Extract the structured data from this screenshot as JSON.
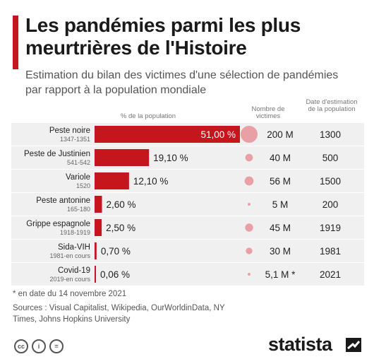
{
  "header": {
    "title": "Les pandémies parmi les plus meurtrières de l'Histoire",
    "subtitle": "Estimation du bilan des victimes d'une sélection de pandémies par rapport à la population mondiale"
  },
  "columns": {
    "pct": "% de la population",
    "victims": "Nombre de victimes",
    "date": "Date d'estimation de la population"
  },
  "chart_data": {
    "type": "bar",
    "orientation": "horizontal",
    "rows": [
      {
        "name": "Peste noire",
        "period": "1347-1351",
        "pct": 51.0,
        "pct_label": "51,00 %",
        "victims": 200,
        "victims_label": "200 M",
        "date": "1300"
      },
      {
        "name": "Peste de Justinien",
        "period": "541-542",
        "pct": 19.1,
        "pct_label": "19,10 %",
        "victims": 40,
        "victims_label": "40 M",
        "date": "500"
      },
      {
        "name": "Variole",
        "period": "1520",
        "pct": 12.1,
        "pct_label": "12,10 %",
        "victims": 56,
        "victims_label": "56 M",
        "date": "1500"
      },
      {
        "name": "Peste antonine",
        "period": "165-180",
        "pct": 2.6,
        "pct_label": "2,60 %",
        "victims": 5,
        "victims_label": "5 M",
        "date": "200"
      },
      {
        "name": "Grippe espagnole",
        "period": "1918-1919",
        "pct": 2.5,
        "pct_label": "2,50 %",
        "victims": 45,
        "victims_label": "45 M",
        "date": "1919"
      },
      {
        "name": "Sida-VIH",
        "period": "1981-en cours",
        "pct": 0.7,
        "pct_label": "0,70 %",
        "victims": 30,
        "victims_label": "30 M",
        "date": "1981"
      },
      {
        "name": "Covid-19",
        "period": "2019-en cours",
        "pct": 0.06,
        "pct_label": "0,06 %",
        "victims": 5.1,
        "victims_label": "5,1 M *",
        "date": "2021"
      }
    ],
    "xlim": [
      0,
      51
    ],
    "colors": {
      "bar": "#c4161c",
      "bubble": "#e8a0a6",
      "row_bg": "#f0f0f0"
    }
  },
  "footer": {
    "footnote": "* en date du 14 novembre 2021",
    "sources": "Sources : Visual Capitalist, Wikipedia, OurWorldinData, NY Times, Johns Hopkins University",
    "license_icons": [
      "cc-icon",
      "attribution-icon",
      "no-derivatives-icon"
    ],
    "license_labels": [
      "cc",
      "i",
      "="
    ],
    "brand": "statista"
  }
}
